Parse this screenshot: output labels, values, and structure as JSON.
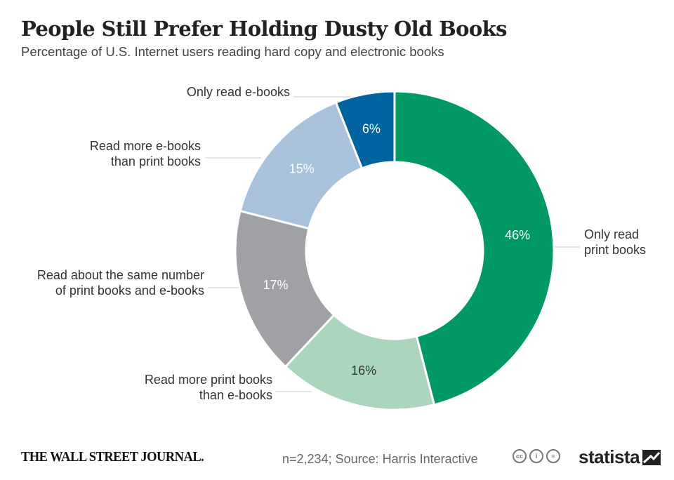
{
  "chart_data": {
    "type": "pie",
    "title": "People Still Prefer Holding Dusty Old Books",
    "subtitle": "Percentage of U.S. Internet users reading hard copy and electronic books",
    "unit": "%",
    "slices": [
      {
        "label": "Only read print books",
        "value": 46,
        "color": "#009966",
        "text_color": "#ffffff"
      },
      {
        "label": "Read more print books than e-books",
        "value": 16,
        "color": "#acd5bd",
        "text_color": "#333333"
      },
      {
        "label": "Read about the same number of print books and e-books",
        "value": 17,
        "color": "#a0a1a4",
        "text_color": "#ffffff"
      },
      {
        "label": "Read more e-books than print books",
        "value": 15,
        "color": "#a8c2dc",
        "text_color": "#ffffff"
      },
      {
        "label": "Only read e-books",
        "value": 6,
        "color": "#0064a0",
        "text_color": "#ffffff"
      }
    ],
    "value_labels": [
      "46%",
      "16%",
      "17%",
      "15%",
      "6%"
    ],
    "category_labels": [
      [
        "Only read",
        "print books"
      ],
      [
        "Read more print books",
        "than e-books"
      ],
      [
        "Read about the same number",
        "of print books and e-books"
      ],
      [
        "Read more e-books",
        "than print books"
      ],
      [
        "Only read e-books"
      ]
    ],
    "legend": "none"
  },
  "footer": {
    "publisher": "THE WALL STREET JOURNAL.",
    "source": "n=2,234; Source: Harris Interactive",
    "license_icons": [
      "creative-commons-icon",
      "attribution-icon",
      "no-derivatives-icon"
    ],
    "license_glyphs": [
      "cc",
      "i",
      "="
    ],
    "brand": "statista"
  }
}
